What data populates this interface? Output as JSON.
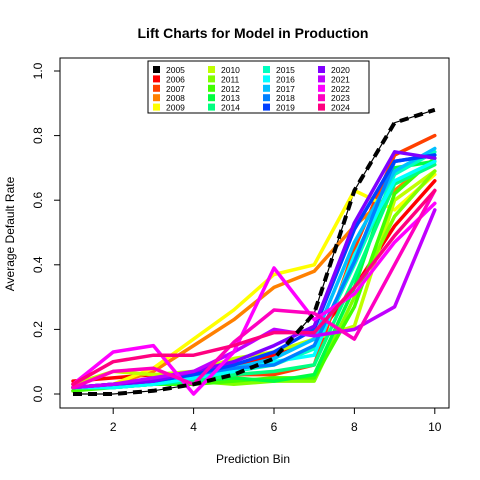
{
  "chart_data": {
    "type": "line",
    "title": "Lift Charts for Model in Production",
    "xlabel": "Prediction Bin",
    "ylabel": "Average Default Rate",
    "xlim": [
      1,
      10
    ],
    "ylim": [
      0,
      1
    ],
    "xticks": [
      2,
      4,
      6,
      8,
      10
    ],
    "yticks": [
      0.0,
      0.2,
      0.4,
      0.6,
      0.8,
      1.0
    ],
    "ytick_labels": [
      "0.0",
      "0.2",
      "0.4",
      "0.6",
      "0.8",
      "1.0"
    ],
    "legend_position": "top-center",
    "x": [
      1,
      2,
      3,
      4,
      5,
      6,
      7,
      8,
      9,
      10
    ],
    "series": [
      {
        "name": "2005",
        "color": "#000000",
        "style": "dashed",
        "values": [
          0.0,
          0.0,
          0.01,
          0.03,
          0.06,
          0.11,
          0.25,
          0.63,
          0.84,
          0.88
        ]
      },
      {
        "name": "2006",
        "color": "#ff0000",
        "values": [
          0.04,
          0.05,
          0.06,
          0.06,
          0.09,
          0.12,
          0.17,
          0.33,
          0.52,
          0.66
        ]
      },
      {
        "name": "2007",
        "color": "#ff4000",
        "values": [
          0.02,
          0.03,
          0.04,
          0.05,
          0.06,
          0.06,
          0.09,
          0.45,
          0.74,
          0.8
        ]
      },
      {
        "name": "2008",
        "color": "#ff8000",
        "values": [
          0.01,
          0.03,
          0.07,
          0.15,
          0.23,
          0.33,
          0.38,
          0.52,
          0.63,
          0.73
        ]
      },
      {
        "name": "2009",
        "color": "#ffff00",
        "values": [
          0.02,
          0.03,
          0.08,
          0.17,
          0.26,
          0.37,
          0.4,
          0.63,
          0.57,
          0.68
        ]
      },
      {
        "name": "2010",
        "color": "#c0ff00",
        "values": [
          0.03,
          0.07,
          0.06,
          0.07,
          0.11,
          0.13,
          0.17,
          0.21,
          0.6,
          0.69
        ]
      },
      {
        "name": "2011",
        "color": "#80ff00",
        "values": [
          0.02,
          0.02,
          0.03,
          0.04,
          0.03,
          0.04,
          0.04,
          0.3,
          0.55,
          0.69
        ]
      },
      {
        "name": "2012",
        "color": "#40ff00",
        "values": [
          0.01,
          0.02,
          0.03,
          0.03,
          0.04,
          0.05,
          0.05,
          0.27,
          0.62,
          0.73
        ]
      },
      {
        "name": "2013",
        "color": "#00ff40",
        "values": [
          0.02,
          0.02,
          0.03,
          0.04,
          0.05,
          0.04,
          0.06,
          0.33,
          0.7,
          0.72
        ]
      },
      {
        "name": "2014",
        "color": "#00ff80",
        "values": [
          0.02,
          0.02,
          0.03,
          0.04,
          0.06,
          0.07,
          0.09,
          0.36,
          0.65,
          0.71
        ]
      },
      {
        "name": "2015",
        "color": "#00ffc0",
        "values": [
          0.02,
          0.02,
          0.03,
          0.05,
          0.07,
          0.09,
          0.14,
          0.4,
          0.68,
          0.75
        ]
      },
      {
        "name": "2016",
        "color": "#00ffff",
        "values": [
          0.02,
          0.02,
          0.03,
          0.05,
          0.07,
          0.1,
          0.12,
          0.43,
          0.66,
          0.72
        ]
      },
      {
        "name": "2017",
        "color": "#00c0ff",
        "values": [
          0.02,
          0.03,
          0.04,
          0.06,
          0.08,
          0.11,
          0.17,
          0.47,
          0.69,
          0.76
        ]
      },
      {
        "name": "2018",
        "color": "#0080ff",
        "values": [
          0.02,
          0.03,
          0.04,
          0.06,
          0.08,
          0.09,
          0.15,
          0.41,
          0.72,
          0.74
        ]
      },
      {
        "name": "2019",
        "color": "#0040ff",
        "values": [
          0.02,
          0.03,
          0.04,
          0.06,
          0.09,
          0.13,
          0.2,
          0.51,
          0.72,
          0.74
        ]
      },
      {
        "name": "2020",
        "color": "#8000ff",
        "values": [
          0.02,
          0.03,
          0.04,
          0.07,
          0.1,
          0.15,
          0.21,
          0.53,
          0.75,
          0.73
        ]
      },
      {
        "name": "2021",
        "color": "#c000ff",
        "values": [
          0.02,
          0.03,
          0.05,
          0.07,
          0.13,
          0.2,
          0.18,
          0.2,
          0.27,
          0.57
        ]
      },
      {
        "name": "2022",
        "color": "#ff00ff",
        "values": [
          0.03,
          0.13,
          0.15,
          0.0,
          0.13,
          0.39,
          0.23,
          0.31,
          0.47,
          0.59
        ]
      },
      {
        "name": "2023",
        "color": "#ff00c0",
        "values": [
          0.02,
          0.07,
          0.08,
          0.03,
          0.16,
          0.26,
          0.25,
          0.17,
          0.4,
          0.63
        ]
      },
      {
        "name": "2024",
        "color": "#ff0080",
        "values": [
          0.03,
          0.1,
          0.12,
          0.12,
          0.15,
          0.19,
          0.19,
          0.33,
          0.49,
          0.63
        ]
      }
    ]
  }
}
